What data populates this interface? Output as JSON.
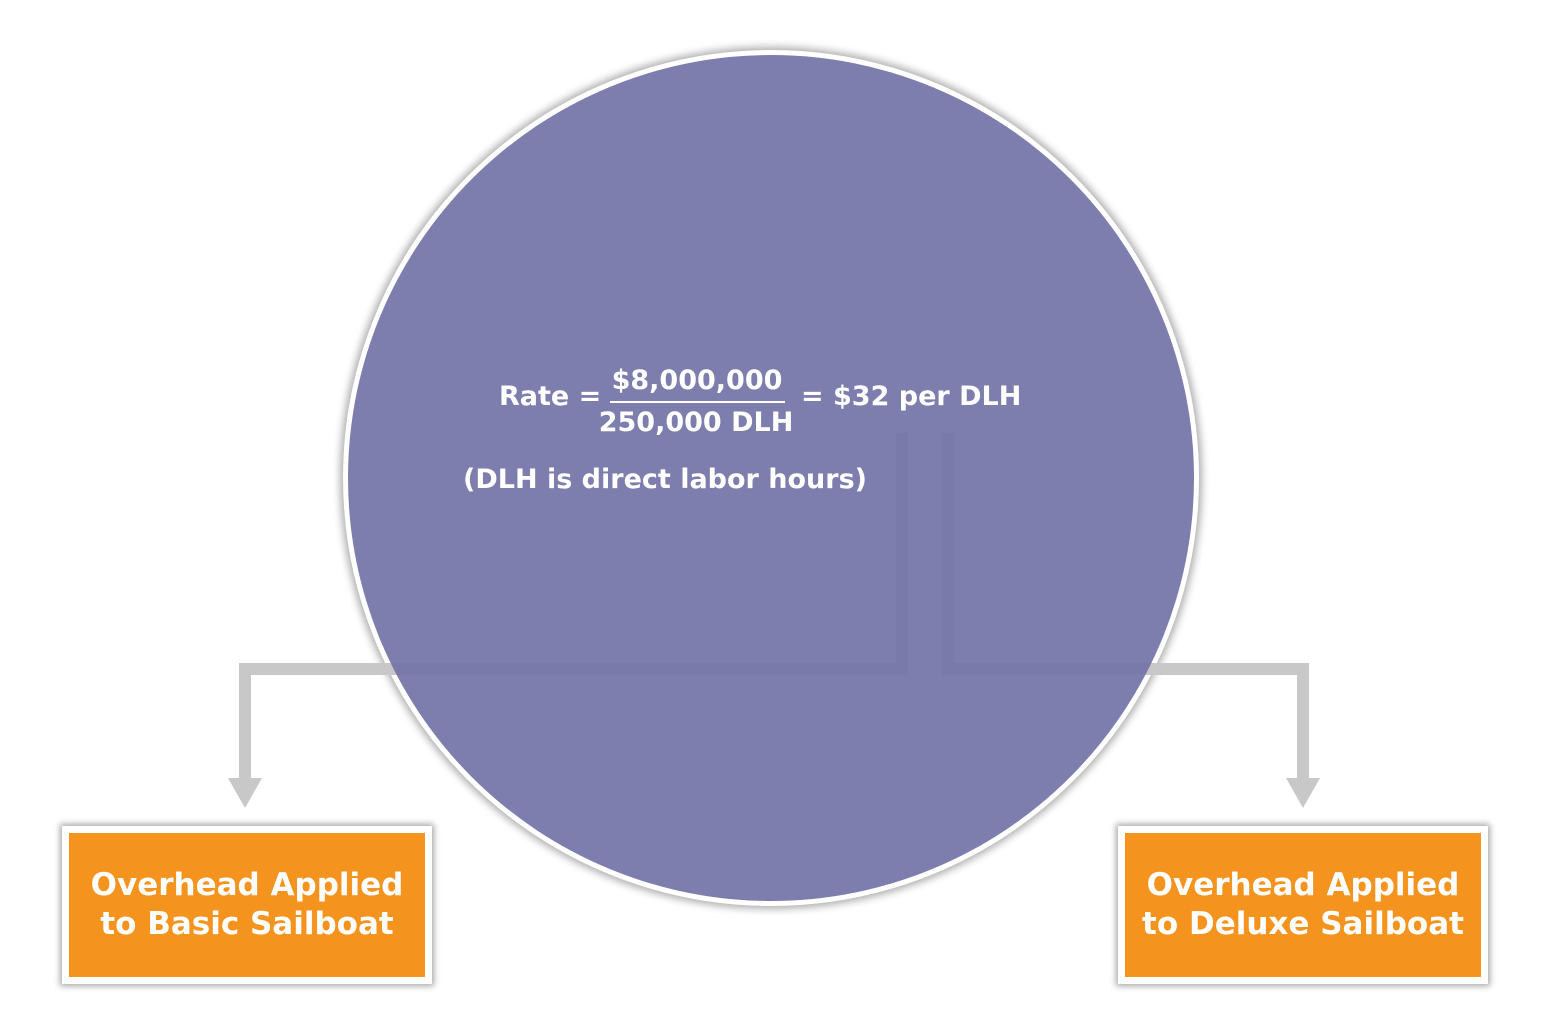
{
  "colors": {
    "circle_fill": "#7474a8",
    "connector": "#c8c8c8",
    "box_fill": "#f4931e",
    "text": "#ffffff"
  },
  "formula": {
    "rate_label": "Rate =",
    "numerator": "$8,000,000",
    "denominator": "250,000 DLH",
    "result": "= $32 per DLH",
    "note": "(DLH is direct labor hours)"
  },
  "boxes": {
    "basic": "Overhead Applied\nto Basic Sailboat",
    "deluxe": "Overhead Applied\nto Deluxe Sailboat"
  }
}
